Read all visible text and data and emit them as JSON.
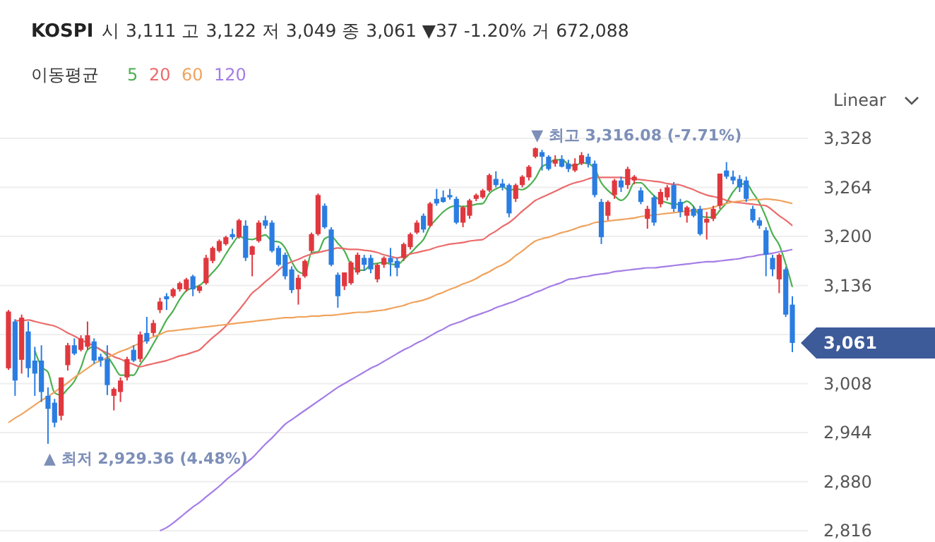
{
  "chart_data": {
    "type": "candlestick",
    "title": "KOSPI",
    "subtitle": "시 3,111 고 3,122 저 3,049 종 3,061 ▼37 -1.20% 거 672,088",
    "legend_title": "이동평균",
    "legend": "top left",
    "grid": "y",
    "ylim": [
      2816,
      3328
    ],
    "yticks": [
      {
        "value": 2816,
        "label": "2,816"
      },
      {
        "value": 2880,
        "label": "2,880"
      },
      {
        "value": 2944,
        "label": "2,944"
      },
      {
        "value": 3008,
        "label": "3,008"
      },
      {
        "value": 3072,
        "label": null
      },
      {
        "value": 3136,
        "label": "3,136"
      },
      {
        "value": 3200,
        "label": "3,200"
      },
      {
        "value": 3264,
        "label": "3,264"
      },
      {
        "value": 3328,
        "label": "3,328"
      }
    ],
    "categories": [
      null,
      null,
      null,
      null,
      null,
      null,
      null,
      null,
      null,
      null,
      null,
      null,
      null,
      null,
      null,
      null,
      null,
      null,
      null,
      null,
      null,
      null,
      null,
      null,
      null,
      null,
      null,
      null,
      null,
      null,
      null,
      null,
      null,
      null,
      null,
      null,
      null,
      null,
      null,
      null,
      null,
      null,
      null,
      null,
      null,
      null,
      null,
      null,
      null,
      null,
      null,
      null,
      null,
      null,
      null,
      null,
      null,
      null,
      null,
      null,
      null,
      null,
      null,
      null,
      null,
      null,
      null,
      null,
      null,
      null,
      null,
      null,
      null,
      null,
      null,
      null,
      null,
      null,
      null,
      null,
      null,
      null,
      null,
      null,
      null,
      null,
      null,
      null,
      null,
      null,
      null,
      null,
      null,
      null,
      null,
      null,
      null,
      null,
      null,
      null,
      null,
      null,
      null,
      null,
      null,
      null,
      null,
      null,
      null,
      null,
      null,
      null,
      null,
      null,
      null,
      null,
      null,
      null,
      null,
      null
    ],
    "ohlc": [
      [
        3028,
        3104,
        3026,
        3102
      ],
      [
        3089,
        3092,
        2992,
        3012
      ],
      [
        3039,
        3098,
        3021,
        3094
      ],
      [
        3076,
        3089,
        3016,
        3028
      ],
      [
        3038,
        3056,
        2992,
        3021
      ],
      [
        3038,
        3058,
        2984,
        2997
      ],
      [
        2992,
        3003,
        2929.36,
        2975
      ],
      [
        2983,
        2988,
        2951,
        2957
      ],
      [
        2966,
        3016,
        2960,
        3016
      ],
      [
        3032,
        3061,
        3025,
        3058
      ],
      [
        3058,
        3067,
        3045,
        3047
      ],
      [
        3052,
        3071,
        3050,
        3067
      ],
      [
        3056,
        3089,
        3052,
        3071
      ],
      [
        3063,
        3067,
        3034,
        3038
      ],
      [
        3043,
        3047,
        3030,
        3038
      ],
      [
        3040,
        3058,
        2993,
        3006
      ],
      [
        2992,
        3003,
        2973,
        3001
      ],
      [
        2997,
        3016,
        2984,
        3012
      ],
      [
        3016,
        3043,
        3012,
        3040
      ],
      [
        3052,
        3058,
        3036,
        3038
      ],
      [
        3040,
        3076,
        3036,
        3072
      ],
      [
        3074,
        3095,
        3060,
        3063
      ],
      [
        3074,
        3091,
        3070,
        3087
      ],
      [
        3104,
        3120,
        3100,
        3115
      ],
      [
        3122,
        3126,
        3104,
        3118
      ],
      [
        3122,
        3133,
        3120,
        3131
      ],
      [
        3131,
        3141,
        3128,
        3139
      ],
      [
        3131,
        3146,
        3128,
        3144
      ],
      [
        3148,
        3150,
        3122,
        3131
      ],
      [
        3129,
        3137,
        3126,
        3135
      ],
      [
        3139,
        3176,
        3137,
        3172
      ],
      [
        3168,
        3187,
        3165,
        3185
      ],
      [
        3181,
        3196,
        3179,
        3194
      ],
      [
        3190,
        3201,
        3188,
        3199
      ],
      [
        3203,
        3210,
        3196,
        3199
      ],
      [
        3199,
        3223,
        3197,
        3221
      ],
      [
        3214,
        3221,
        3168,
        3172
      ],
      [
        3176,
        3188,
        3148,
        3187
      ],
      [
        3194,
        3221,
        3192,
        3218
      ],
      [
        3221,
        3227,
        3210,
        3214
      ],
      [
        3218,
        3221,
        3179,
        3181
      ],
      [
        3185,
        3188,
        3161,
        3163
      ],
      [
        3176,
        3179,
        3144,
        3148
      ],
      [
        3157,
        3161,
        3126,
        3130
      ],
      [
        3131,
        3150,
        3111,
        3146
      ],
      [
        3148,
        3170,
        3146,
        3168
      ],
      [
        3181,
        3205,
        3179,
        3203
      ],
      [
        3203,
        3256,
        3201,
        3254
      ],
      [
        3240,
        3243,
        3210,
        3212
      ],
      [
        3209,
        3212,
        3161,
        3163
      ],
      [
        3150,
        3153,
        3107,
        3122
      ],
      [
        3135,
        3153,
        3130,
        3153
      ],
      [
        3139,
        3168,
        3137,
        3166
      ],
      [
        3153,
        3179,
        3150,
        3176
      ],
      [
        3172,
        3176,
        3155,
        3163
      ],
      [
        3172,
        3176,
        3152,
        3157
      ],
      [
        3144,
        3165,
        3140,
        3163
      ],
      [
        3163,
        3174,
        3159,
        3172
      ],
      [
        3172,
        3185,
        3148,
        3166
      ],
      [
        3168,
        3172,
        3148,
        3159
      ],
      [
        3172,
        3192,
        3168,
        3190
      ],
      [
        3186,
        3205,
        3183,
        3203
      ],
      [
        3205,
        3221,
        3203,
        3218
      ],
      [
        3227,
        3230,
        3205,
        3209
      ],
      [
        3214,
        3245,
        3212,
        3243
      ],
      [
        3249,
        3262,
        3240,
        3243
      ],
      [
        3251,
        3260,
        3244,
        3245
      ],
      [
        3254,
        3262,
        3248,
        3251
      ],
      [
        3249,
        3252,
        3216,
        3218
      ],
      [
        3218,
        3240,
        3212,
        3238
      ],
      [
        3227,
        3249,
        3223,
        3247
      ],
      [
        3249,
        3256,
        3246,
        3254
      ],
      [
        3251,
        3262,
        3249,
        3260
      ],
      [
        3260,
        3282,
        3258,
        3280
      ],
      [
        3275,
        3285,
        3264,
        3267
      ],
      [
        3269,
        3275,
        3260,
        3264
      ],
      [
        3267,
        3269,
        3225,
        3230
      ],
      [
        3249,
        3269,
        3245,
        3267
      ],
      [
        3267,
        3280,
        3264,
        3278
      ],
      [
        3277,
        3293,
        3273,
        3291
      ],
      [
        3304,
        3316.08,
        3302,
        3315
      ],
      [
        3310,
        3313,
        3286,
        3304
      ],
      [
        3304,
        3306,
        3286,
        3288
      ],
      [
        3295,
        3306,
        3291,
        3300
      ],
      [
        3301,
        3306,
        3290,
        3291
      ],
      [
        3295,
        3300,
        3284,
        3288
      ],
      [
        3286,
        3302,
        3284,
        3295
      ],
      [
        3295,
        3310,
        3293,
        3306
      ],
      [
        3304,
        3308,
        3290,
        3295
      ],
      [
        3295,
        3299,
        3251,
        3254
      ],
      [
        3245,
        3249,
        3190,
        3199
      ],
      [
        3227,
        3247,
        3221,
        3245
      ],
      [
        3254,
        3275,
        3249,
        3273
      ],
      [
        3273,
        3278,
        3258,
        3264
      ],
      [
        3267,
        3291,
        3262,
        3288
      ],
      [
        3273,
        3280,
        3268,
        3278
      ],
      [
        3260,
        3264,
        3242,
        3245
      ],
      [
        3223,
        3240,
        3210,
        3236
      ],
      [
        3251,
        3254,
        3214,
        3218
      ],
      [
        3242,
        3262,
        3238,
        3258
      ],
      [
        3251,
        3267,
        3247,
        3264
      ],
      [
        3267,
        3271,
        3232,
        3236
      ],
      [
        3245,
        3249,
        3225,
        3232
      ],
      [
        3227,
        3240,
        3218,
        3238
      ],
      [
        3236,
        3240,
        3225,
        3227
      ],
      [
        3236,
        3240,
        3201,
        3203
      ],
      [
        3218,
        3232,
        3196,
        3223
      ],
      [
        3223,
        3240,
        3220,
        3236
      ],
      [
        3240,
        3282,
        3236,
        3282
      ],
      [
        3286,
        3297,
        3275,
        3278
      ],
      [
        3278,
        3286,
        3268,
        3273
      ],
      [
        3275,
        3280,
        3258,
        3264
      ],
      [
        3273,
        3278,
        3245,
        3249
      ],
      [
        3236,
        3240,
        3218,
        3221
      ],
      [
        3221,
        3225,
        3210,
        3214
      ],
      [
        3208,
        3212,
        3148,
        3176
      ],
      [
        3172,
        3176,
        3148,
        3157
      ],
      [
        3144,
        3178,
        3126,
        3176
      ],
      [
        3157,
        3160,
        3095,
        3098
      ],
      [
        3111,
        3122,
        3049,
        3061
      ]
    ],
    "colors": [
      "#e0383e",
      "#2b7de1",
      "#e0383e",
      "#2b7de1",
      "#2b7de1",
      "#2b7de1",
      "#2b7de1",
      "#2b7de1",
      "#e0383e",
      "#e0383e",
      "#2b7de1",
      "#e0383e",
      "#e0383e",
      "#2b7de1",
      "#2b7de1",
      "#2b7de1",
      "#e0383e",
      "#e0383e",
      "#e0383e",
      "#2b7de1",
      "#e0383e",
      "#2b7de1",
      "#e0383e",
      "#e0383e",
      "#2b7de1",
      "#e0383e",
      "#e0383e",
      "#e0383e",
      "#2b7de1",
      "#e0383e",
      "#e0383e",
      "#e0383e",
      "#e0383e",
      "#e0383e",
      "#2b7de1",
      "#e0383e",
      "#2b7de1",
      "#e0383e",
      "#e0383e",
      "#2b7de1",
      "#2b7de1",
      "#2b7de1",
      "#2b7de1",
      "#2b7de1",
      "#e0383e",
      "#e0383e",
      "#e0383e",
      "#e0383e",
      "#2b7de1",
      "#2b7de1",
      "#2b7de1",
      "#e0383e",
      "#e0383e",
      "#e0383e",
      "#2b7de1",
      "#2b7de1",
      "#e0383e",
      "#e0383e",
      "#2b7de1",
      "#2b7de1",
      "#e0383e",
      "#e0383e",
      "#e0383e",
      "#2b7de1",
      "#e0383e",
      "#2b7de1",
      "#2b7de1",
      "#2b7de1",
      "#2b7de1",
      "#e0383e",
      "#e0383e",
      "#e0383e",
      "#e0383e",
      "#e0383e",
      "#2b7de1",
      "#2b7de1",
      "#2b7de1",
      "#e0383e",
      "#e0383e",
      "#e0383e",
      "#e0383e",
      "#2b7de1",
      "#2b7de1",
      "#e0383e",
      "#2b7de1",
      "#2b7de1",
      "#e0383e",
      "#e0383e",
      "#2b7de1",
      "#2b7de1",
      "#2b7de1",
      "#e0383e",
      "#e0383e",
      "#2b7de1",
      "#e0383e",
      "#e0383e",
      "#2b7de1",
      "#e0383e",
      "#2b7de1",
      "#e0383e",
      "#e0383e",
      "#2b7de1",
      "#2b7de1",
      "#e0383e",
      "#2b7de1",
      "#2b7de1",
      "#e0383e",
      "#e0383e",
      "#e0383e",
      "#2b7de1",
      "#2b7de1",
      "#2b7de1",
      "#2b7de1",
      "#2b7de1",
      "#2b7de1",
      "#2b7de1",
      "#2b7de1",
      "#e0383e",
      "#2b7de1",
      "#2b7de1"
    ],
    "series": [
      {
        "name": "5",
        "type": "line",
        "color": "#4cb050",
        "values": [
          null,
          null,
          null,
          null,
          3051,
          3030,
          3023,
          2996,
          2993,
          3001,
          3011,
          3029,
          3052,
          3056,
          3052,
          3044,
          3031,
          3019,
          3019,
          3019,
          3033,
          3045,
          3060,
          3075,
          3091,
          3103,
          3118,
          3129,
          3133,
          3136,
          3144,
          3153,
          3163,
          3177,
          3190,
          3200,
          3197,
          3196,
          3199,
          3202,
          3194,
          3193,
          3185,
          3167,
          3154,
          3151,
          3179,
          3180,
          3197,
          3200,
          3191,
          3181,
          3163,
          3156,
          3156,
          3163,
          3165,
          3166,
          3164,
          3163,
          3170,
          3178,
          3187,
          3196,
          3213,
          3223,
          3232,
          3238,
          3240,
          3239,
          3240,
          3242,
          3243,
          3256,
          3262,
          3265,
          3260,
          3262,
          3261,
          3266,
          3276,
          3291,
          3295,
          3300,
          3300,
          3294,
          3292,
          3296,
          3295,
          3288,
          3270,
          3260,
          3253,
          3247,
          3254,
          3270,
          3270,
          3262,
          3253,
          3247,
          3244,
          3242,
          3242,
          3246,
          3239,
          3227,
          3225,
          3225,
          3234,
          3244,
          3258,
          3267,
          3269,
          3257,
          3244,
          3225,
          3203,
          3189,
          3164,
          3134
        ]
      },
      {
        "name": "20",
        "type": "line",
        "color": "#eb6b6b",
        "values": [
          null,
          3090,
          3090,
          3091,
          3089,
          3087,
          3085,
          3083,
          3079,
          3074,
          3070,
          3065,
          3061,
          3057,
          3052,
          3048,
          3043,
          3040,
          3036,
          3033,
          3030,
          3032,
          3034,
          3036,
          3038,
          3041,
          3044,
          3046,
          3049,
          3052,
          3060,
          3068,
          3075,
          3083,
          3094,
          3104,
          3115,
          3126,
          3133,
          3141,
          3148,
          3156,
          3163,
          3167,
          3170,
          3174,
          3177,
          3179,
          3181,
          3183,
          3185,
          3184,
          3183,
          3183,
          3182,
          3181,
          3179,
          3176,
          3174,
          3172,
          3174,
          3177,
          3179,
          3181,
          3183,
          3186,
          3188,
          3190,
          3191,
          3192,
          3194,
          3195,
          3196,
          3202,
          3207,
          3213,
          3218,
          3225,
          3233,
          3240,
          3247,
          3251,
          3255,
          3259,
          3263,
          3267,
          3270,
          3272,
          3275,
          3277,
          3277,
          3277,
          3277,
          3277,
          3276,
          3275,
          3274,
          3273,
          3272,
          3271,
          3269,
          3268,
          3267,
          3264,
          3261,
          3257,
          3254,
          3252,
          3250,
          3247,
          3245,
          3244,
          3243,
          3242,
          3241,
          3240,
          3234,
          3227,
          3221,
          3214
        ]
      },
      {
        "name": "60",
        "type": "line",
        "color": "#f0a35e",
        "values": [
          2957,
          2963,
          2968,
          2974,
          2980,
          2986,
          2991,
          2997,
          3003,
          3009,
          3016,
          3022,
          3028,
          3034,
          3038,
          3042,
          3046,
          3050,
          3053,
          3057,
          3061,
          3065,
          3069,
          3072,
          3076,
          3077,
          3078,
          3079,
          3080,
          3081,
          3082,
          3083,
          3084,
          3085,
          3086,
          3087,
          3088,
          3089,
          3090,
          3091,
          3092,
          3093,
          3094,
          3094,
          3095,
          3095,
          3096,
          3096,
          3097,
          3097,
          3098,
          3099,
          3100,
          3101,
          3101,
          3102,
          3103,
          3104,
          3106,
          3108,
          3110,
          3113,
          3115,
          3117,
          3120,
          3124,
          3127,
          3131,
          3134,
          3138,
          3141,
          3145,
          3150,
          3154,
          3159,
          3163,
          3168,
          3175,
          3181,
          3188,
          3194,
          3197,
          3199,
          3202,
          3205,
          3207,
          3210,
          3213,
          3215,
          3218,
          3219,
          3220,
          3221,
          3222,
          3223,
          3224,
          3226,
          3227,
          3228,
          3229,
          3230,
          3231,
          3232,
          3233,
          3234,
          3235,
          3236,
          3238,
          3241,
          3243,
          3245,
          3246,
          3247,
          3248,
          3248,
          3249,
          3248,
          3247,
          3245,
          3243
        ]
      },
      {
        "name": "120",
        "type": "line",
        "color": "#a47de6",
        "values": [
          null,
          null,
          null,
          null,
          null,
          null,
          null,
          null,
          null,
          null,
          null,
          null,
          null,
          null,
          null,
          null,
          null,
          null,
          null,
          null,
          null,
          null,
          null,
          2816,
          2820,
          2826,
          2833,
          2840,
          2847,
          2853,
          2860,
          2867,
          2874,
          2882,
          2889,
          2896,
          2904,
          2911,
          2920,
          2929,
          2937,
          2946,
          2955,
          2961,
          2967,
          2973,
          2979,
          2985,
          2991,
          2997,
          3003,
          3008,
          3013,
          3018,
          3023,
          3028,
          3032,
          3037,
          3042,
          3047,
          3052,
          3056,
          3061,
          3065,
          3070,
          3075,
          3079,
          3084,
          3087,
          3090,
          3094,
          3097,
          3100,
          3103,
          3107,
          3110,
          3113,
          3116,
          3120,
          3123,
          3127,
          3130,
          3134,
          3137,
          3140,
          3144,
          3145,
          3147,
          3148,
          3150,
          3151,
          3152,
          3154,
          3155,
          3156,
          3157,
          3158,
          3159,
          3159,
          3160,
          3161,
          3162,
          3163,
          3164,
          3165,
          3166,
          3167,
          3167,
          3168,
          3169,
          3170,
          3171,
          3173,
          3174,
          3176,
          3177,
          3178,
          3180,
          3181,
          3183
        ]
      }
    ],
    "annotations": [
      "▼ 최고 3,316.08 (-7.71%)",
      "▲ 최저 2,929.36 (4.48%)",
      "3,061",
      "Linear"
    ]
  }
}
